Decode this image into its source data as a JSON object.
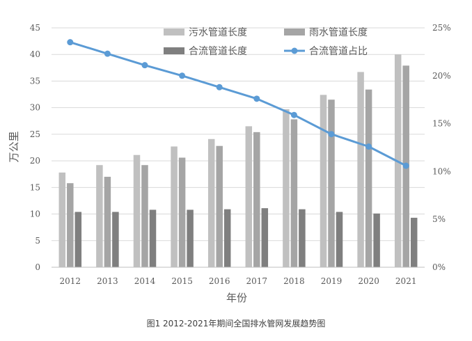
{
  "caption": "图1  2012-2021年期间全国排水管网发展趋势图",
  "chart_data": {
    "type": "bar",
    "categories": [
      "2012",
      "2013",
      "2014",
      "2015",
      "2016",
      "2017",
      "2018",
      "2019",
      "2020",
      "2021"
    ],
    "xlabel": "年份",
    "ylabel": "万公里",
    "ylim": [
      0,
      45
    ],
    "y_ticks": [
      0,
      5,
      10,
      15,
      20,
      25,
      30,
      35,
      40,
      45
    ],
    "y2lim": [
      0,
      25
    ],
    "y2_ticks": [
      "0%",
      "5%",
      "10%",
      "15%",
      "20%",
      "25%"
    ],
    "grid": true,
    "legend_position": "top",
    "series": [
      {
        "name": "污水管道长度",
        "kind": "bar",
        "axis": "left",
        "color": "#c0c0c0",
        "values": [
          17.8,
          19.2,
          21.1,
          22.7,
          24.1,
          26.5,
          29.7,
          32.4,
          36.7,
          40.0
        ]
      },
      {
        "name": "雨水管道长度",
        "kind": "bar",
        "axis": "left",
        "color": "#a5a5a5",
        "values": [
          15.8,
          17.0,
          19.2,
          20.6,
          22.8,
          25.4,
          27.8,
          31.5,
          33.4,
          37.9
        ]
      },
      {
        "name": "合流管道长度",
        "kind": "bar",
        "axis": "left",
        "color": "#7f7f7f",
        "values": [
          10.4,
          10.4,
          10.8,
          10.8,
          10.9,
          11.1,
          10.9,
          10.4,
          10.1,
          9.3
        ]
      },
      {
        "name": "合流管道占比",
        "kind": "line",
        "axis": "right",
        "color": "#5b9bd5",
        "values": [
          23.5,
          22.3,
          21.1,
          20.0,
          18.8,
          17.6,
          15.9,
          13.9,
          12.6,
          10.6
        ]
      }
    ]
  }
}
